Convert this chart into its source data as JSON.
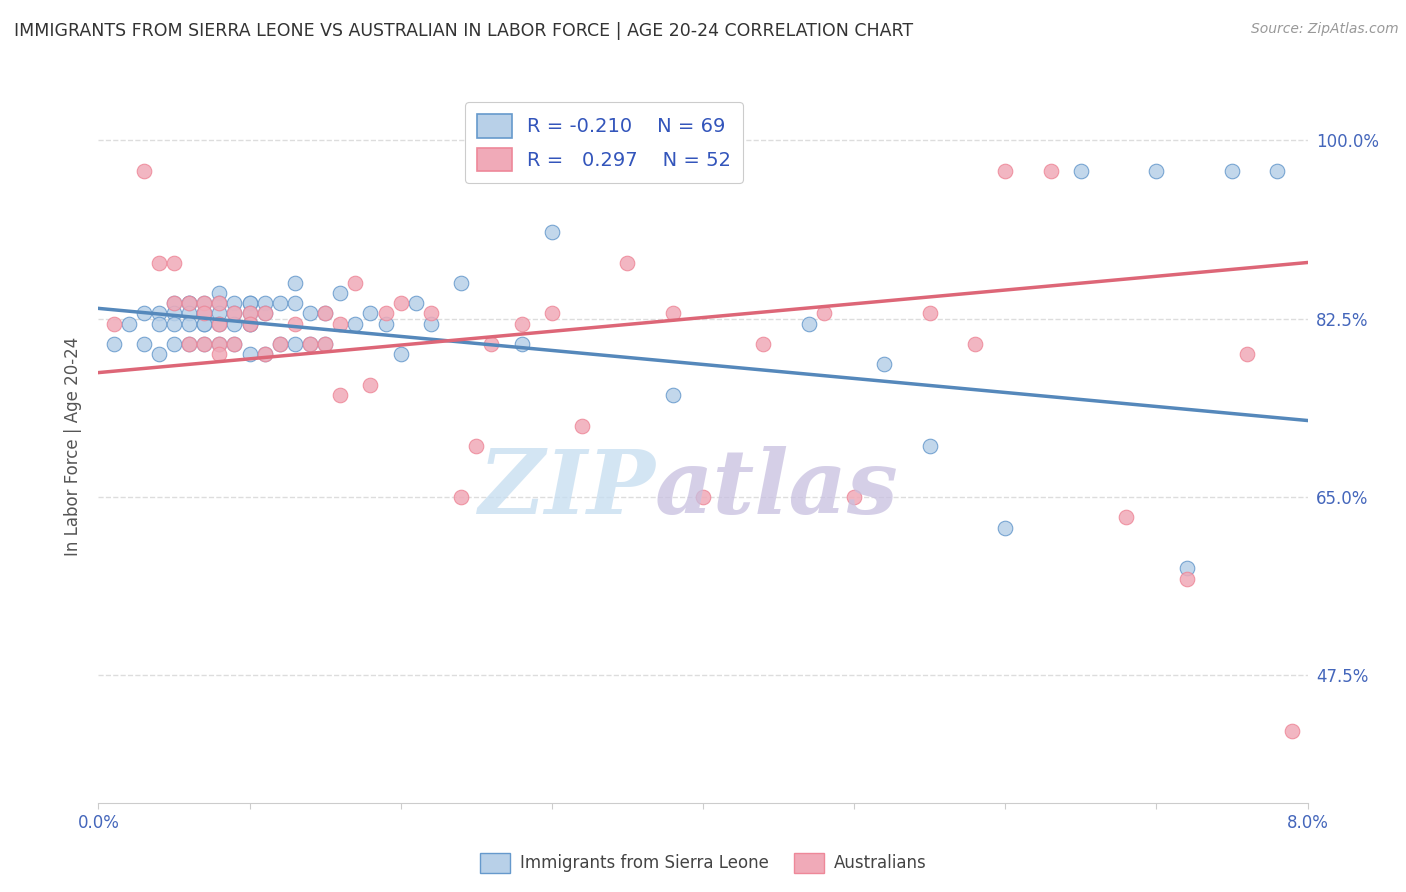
{
  "title": "IMMIGRANTS FROM SIERRA LEONE VS AUSTRALIAN IN LABOR FORCE | AGE 20-24 CORRELATION CHART",
  "source": "Source: ZipAtlas.com",
  "ylabel": "In Labor Force | Age 20-24",
  "yticks_labels": [
    "100.0%",
    "82.5%",
    "65.0%",
    "47.5%"
  ],
  "ytick_vals": [
    1.0,
    0.825,
    0.65,
    0.475
  ],
  "xmin": 0.0,
  "xmax": 0.08,
  "ymin": 0.35,
  "ymax": 1.05,
  "blue_color": "#b8d0e8",
  "pink_color": "#f0aab8",
  "blue_edge_color": "#6699cc",
  "pink_edge_color": "#ee8899",
  "blue_line_color": "#5588bb",
  "pink_line_color": "#dd6677",
  "legend_text_color": "#3355bb",
  "axis_label_color": "#4466bb",
  "title_color": "#333333",
  "blue_trend_x": [
    0.0,
    0.08
  ],
  "blue_trend_y": [
    0.835,
    0.725
  ],
  "pink_trend_x": [
    0.0,
    0.08
  ],
  "pink_trend_y": [
    0.772,
    0.88
  ],
  "blue_x": [
    0.001,
    0.002,
    0.003,
    0.003,
    0.004,
    0.004,
    0.004,
    0.005,
    0.005,
    0.005,
    0.005,
    0.006,
    0.006,
    0.006,
    0.006,
    0.006,
    0.007,
    0.007,
    0.007,
    0.007,
    0.007,
    0.007,
    0.008,
    0.008,
    0.008,
    0.008,
    0.008,
    0.009,
    0.009,
    0.009,
    0.009,
    0.01,
    0.01,
    0.01,
    0.01,
    0.01,
    0.01,
    0.011,
    0.011,
    0.011,
    0.012,
    0.012,
    0.013,
    0.013,
    0.013,
    0.014,
    0.014,
    0.015,
    0.015,
    0.016,
    0.017,
    0.018,
    0.019,
    0.02,
    0.021,
    0.022,
    0.024,
    0.028,
    0.03,
    0.038,
    0.047,
    0.052,
    0.055,
    0.06,
    0.065,
    0.07,
    0.072,
    0.075,
    0.078
  ],
  "blue_y": [
    0.8,
    0.82,
    0.83,
    0.8,
    0.83,
    0.82,
    0.79,
    0.84,
    0.83,
    0.82,
    0.8,
    0.84,
    0.84,
    0.83,
    0.82,
    0.8,
    0.84,
    0.83,
    0.83,
    0.82,
    0.82,
    0.8,
    0.85,
    0.84,
    0.83,
    0.82,
    0.8,
    0.84,
    0.83,
    0.82,
    0.8,
    0.84,
    0.84,
    0.83,
    0.82,
    0.82,
    0.79,
    0.84,
    0.83,
    0.79,
    0.84,
    0.8,
    0.86,
    0.84,
    0.8,
    0.83,
    0.8,
    0.83,
    0.8,
    0.85,
    0.82,
    0.83,
    0.82,
    0.79,
    0.84,
    0.82,
    0.86,
    0.8,
    0.91,
    0.75,
    0.82,
    0.78,
    0.7,
    0.62,
    0.97,
    0.97,
    0.58,
    0.97,
    0.97
  ],
  "pink_x": [
    0.001,
    0.003,
    0.004,
    0.005,
    0.005,
    0.006,
    0.006,
    0.007,
    0.007,
    0.007,
    0.008,
    0.008,
    0.008,
    0.008,
    0.009,
    0.009,
    0.01,
    0.01,
    0.011,
    0.011,
    0.012,
    0.013,
    0.014,
    0.015,
    0.015,
    0.016,
    0.016,
    0.017,
    0.018,
    0.019,
    0.02,
    0.022,
    0.024,
    0.025,
    0.026,
    0.028,
    0.03,
    0.032,
    0.035,
    0.038,
    0.04,
    0.044,
    0.048,
    0.05,
    0.055,
    0.058,
    0.06,
    0.063,
    0.068,
    0.072,
    0.076,
    0.079
  ],
  "pink_y": [
    0.82,
    0.97,
    0.88,
    0.88,
    0.84,
    0.84,
    0.8,
    0.84,
    0.83,
    0.8,
    0.84,
    0.82,
    0.8,
    0.79,
    0.83,
    0.8,
    0.83,
    0.82,
    0.83,
    0.79,
    0.8,
    0.82,
    0.8,
    0.83,
    0.8,
    0.82,
    0.75,
    0.86,
    0.76,
    0.83,
    0.84,
    0.83,
    0.65,
    0.7,
    0.8,
    0.82,
    0.83,
    0.72,
    0.88,
    0.83,
    0.65,
    0.8,
    0.83,
    0.65,
    0.83,
    0.8,
    0.97,
    0.97,
    0.63,
    0.57,
    0.79,
    0.42
  ]
}
